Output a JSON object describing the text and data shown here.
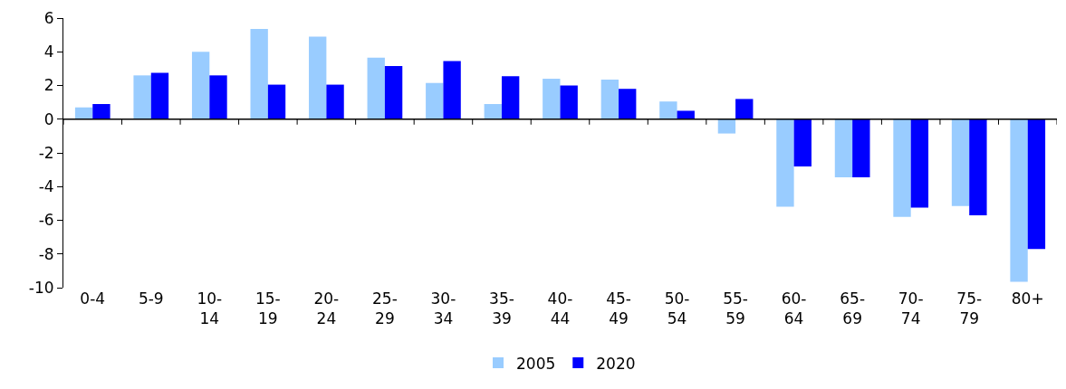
{
  "chart_data": {
    "type": "bar",
    "categories": [
      "0-4",
      "5-9",
      "10-14",
      "15-19",
      "20-24",
      "25-29",
      "30-34",
      "35-39",
      "40-44",
      "45-49",
      "50-54",
      "55-59",
      "60-64",
      "65-69",
      "70-74",
      "75-79",
      "80+"
    ],
    "series": [
      {
        "name": "2005",
        "color": "#99ccff",
        "values": [
          0.7,
          2.6,
          4.0,
          5.35,
          4.9,
          3.65,
          2.15,
          0.9,
          2.4,
          2.35,
          1.05,
          -0.85,
          -5.2,
          -3.45,
          -5.8,
          -5.15,
          -9.65
        ]
      },
      {
        "name": "2020",
        "color": "#0000ff",
        "values": [
          0.9,
          2.75,
          2.6,
          2.05,
          2.05,
          3.15,
          3.45,
          2.55,
          2.0,
          1.8,
          0.5,
          1.2,
          -2.8,
          -3.45,
          -5.25,
          -5.7,
          -7.7
        ]
      }
    ],
    "ylim": [
      -10,
      6
    ],
    "yticks": [
      -10,
      -8,
      -6,
      -4,
      -2,
      0,
      2,
      4,
      6
    ],
    "legend": "bottom"
  }
}
